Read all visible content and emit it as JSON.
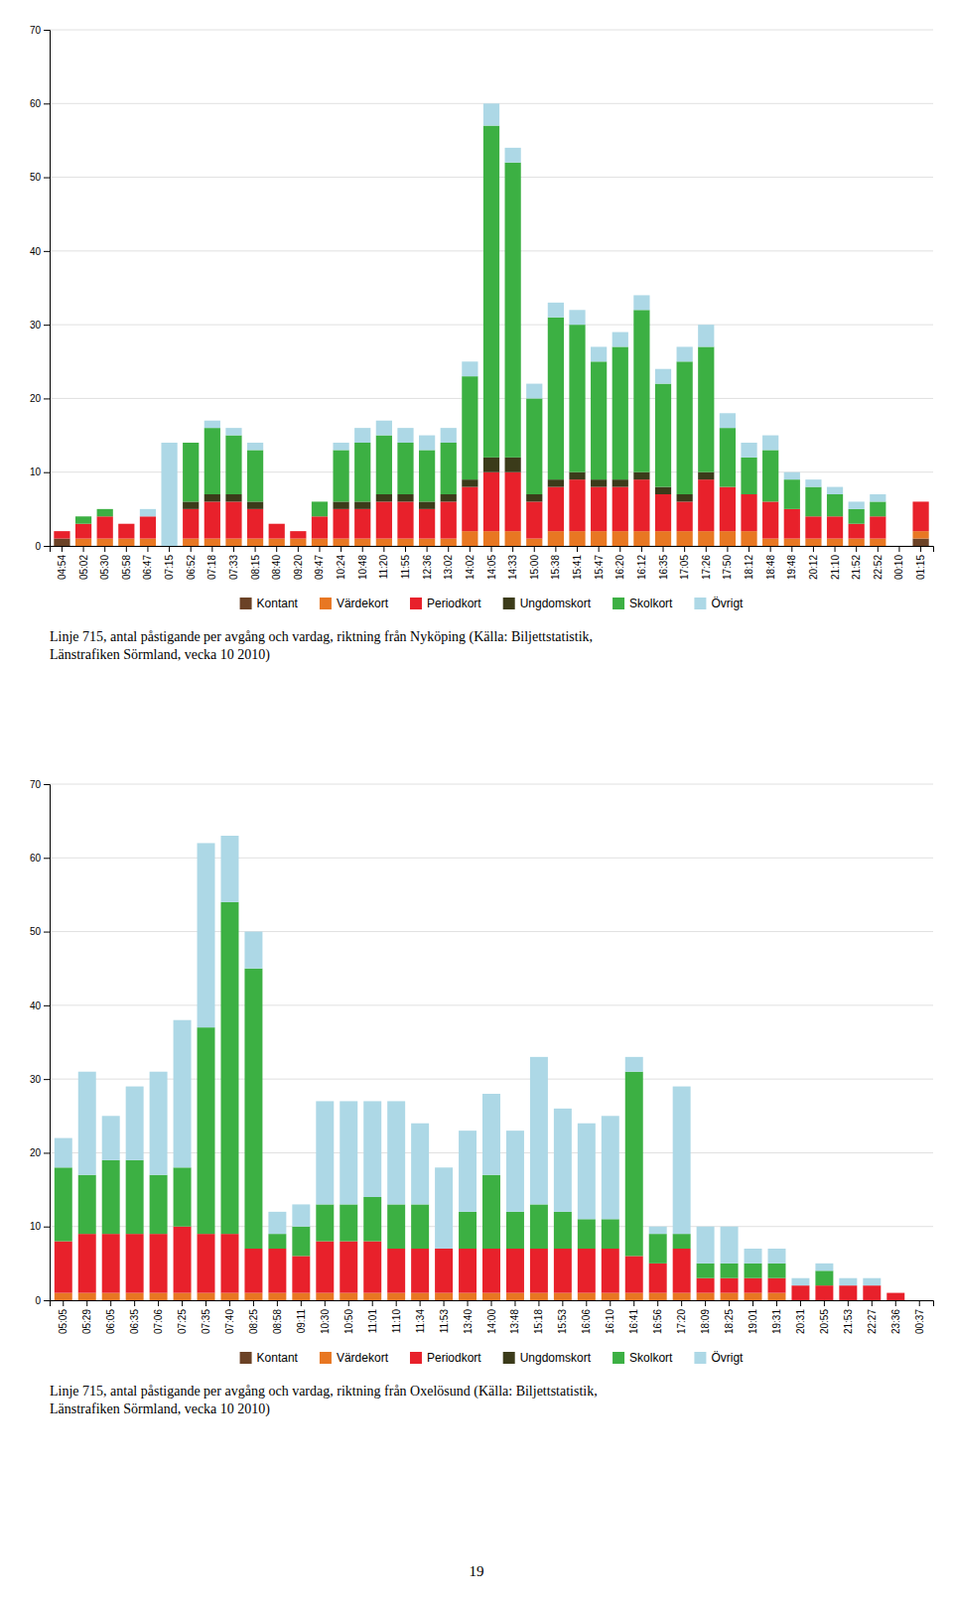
{
  "chart_data": [
    {
      "type": "bar",
      "stacked": true,
      "grid": true,
      "legend": "bottom",
      "title": "Linje 715, antal påstigande per avgång och vardag, riktning från Nyköping (Källa: Biljettstatistik,\nLänstrafiken Sörmland, vecka 10 2010)",
      "categories": [
        "04:54",
        "05:02",
        "05:30",
        "05:58",
        "06:47",
        "07:15",
        "06:52",
        "07:18",
        "07:33",
        "08:15",
        "08:40",
        "09:20",
        "09:47",
        "10:24",
        "10:48",
        "11:20",
        "11:55",
        "12:36",
        "13:02",
        "14:02",
        "14:05",
        "14:33",
        "15:00",
        "15:38",
        "15:41",
        "15:47",
        "16:20",
        "16:12",
        "16:35",
        "17:05",
        "17:26",
        "17:50",
        "18:12",
        "18:48",
        "19:48",
        "20:12",
        "21:10",
        "21:52",
        "22:52",
        "00:10",
        "01:15"
      ],
      "series": [
        {
          "name": "Kontant",
          "color": "#6B4226",
          "values": [
            1,
            0,
            0,
            0,
            0,
            0,
            0,
            0,
            0,
            0,
            0,
            0,
            0,
            0,
            0,
            0,
            0,
            0,
            0,
            0,
            0,
            0,
            0,
            0,
            0,
            0,
            0,
            0,
            0,
            0,
            0,
            0,
            0,
            0,
            0,
            0,
            0,
            0,
            0,
            0,
            1
          ]
        },
        {
          "name": "Värdekort",
          "color": "#E87722",
          "values": [
            0,
            1,
            1,
            1,
            1,
            0,
            1,
            1,
            1,
            1,
            1,
            1,
            1,
            1,
            1,
            1,
            1,
            1,
            1,
            2,
            2,
            2,
            1,
            2,
            2,
            2,
            2,
            2,
            2,
            2,
            2,
            2,
            2,
            1,
            1,
            1,
            1,
            1,
            1,
            0,
            1
          ]
        },
        {
          "name": "Periodkort",
          "color": "#E8212B",
          "values": [
            1,
            2,
            3,
            2,
            3,
            0,
            4,
            5,
            5,
            4,
            2,
            1,
            3,
            4,
            4,
            5,
            5,
            4,
            5,
            6,
            8,
            8,
            5,
            6,
            7,
            6,
            6,
            7,
            5,
            4,
            7,
            6,
            5,
            5,
            4,
            3,
            3,
            2,
            3,
            0,
            4
          ]
        },
        {
          "name": "Ungdomskort",
          "color": "#3B3B1A",
          "values": [
            0,
            0,
            0,
            0,
            0,
            0,
            1,
            1,
            1,
            1,
            0,
            0,
            0,
            1,
            1,
            1,
            1,
            1,
            1,
            1,
            2,
            2,
            1,
            1,
            1,
            1,
            1,
            1,
            1,
            1,
            1,
            0,
            0,
            0,
            0,
            0,
            0,
            0,
            0,
            0,
            0
          ]
        },
        {
          "name": "Skolkort",
          "color": "#3CB043",
          "values": [
            0,
            1,
            1,
            0,
            0,
            0,
            8,
            9,
            8,
            7,
            0,
            0,
            2,
            7,
            8,
            8,
            7,
            7,
            7,
            14,
            45,
            40,
            13,
            22,
            20,
            16,
            18,
            22,
            14,
            18,
            17,
            8,
            5,
            7,
            4,
            4,
            3,
            2,
            2,
            0,
            0
          ]
        },
        {
          "name": "Övrigt",
          "color": "#ADD8E6",
          "values": [
            0,
            0,
            0,
            0,
            1,
            14,
            0,
            1,
            1,
            1,
            0,
            0,
            0,
            1,
            2,
            2,
            2,
            2,
            2,
            2,
            3,
            2,
            2,
            2,
            2,
            2,
            2,
            2,
            2,
            2,
            3,
            2,
            2,
            2,
            1,
            1,
            1,
            1,
            1,
            0,
            0
          ]
        }
      ],
      "ylim": [
        0,
        70
      ],
      "yticks": [
        0,
        10,
        20,
        30,
        40,
        50,
        60,
        70
      ]
    },
    {
      "type": "bar",
      "stacked": true,
      "grid": true,
      "legend": "bottom",
      "title": "Linje 715, antal påstigande per avgång och vardag, riktning från Oxelösund (Källa: Biljettstatistik,\nLänstrafiken Sörmland, vecka 10 2010)",
      "categories": [
        "05:05",
        "05:29",
        "06:05",
        "06:35",
        "07:06",
        "07:25",
        "07:35",
        "07:40",
        "08:25",
        "08:58",
        "09:11",
        "10:30",
        "10:50",
        "11:01",
        "11:10",
        "11:34",
        "11:53",
        "13:40",
        "14:00",
        "13:48",
        "15:18",
        "15:53",
        "16:06",
        "16:10",
        "16:41",
        "16:56",
        "17:20",
        "18:09",
        "18:25",
        "19:01",
        "19:31",
        "20:31",
        "20:55",
        "21:53",
        "22:27",
        "23:36",
        "00:37"
      ],
      "series": [
        {
          "name": "Kontant",
          "color": "#6B4226",
          "values": [
            0,
            0,
            0,
            0,
            0,
            0,
            0,
            0,
            0,
            0,
            0,
            0,
            0,
            0,
            0,
            0,
            0,
            0,
            0,
            0,
            0,
            0,
            0,
            0,
            0,
            0,
            0,
            0,
            0,
            0,
            0,
            0,
            0,
            0,
            0,
            0,
            0
          ]
        },
        {
          "name": "Värdekort",
          "color": "#E87722",
          "values": [
            1,
            1,
            1,
            1,
            1,
            1,
            1,
            1,
            1,
            1,
            1,
            1,
            1,
            1,
            1,
            1,
            1,
            1,
            1,
            1,
            1,
            1,
            1,
            1,
            1,
            1,
            1,
            1,
            1,
            1,
            1,
            0,
            0,
            0,
            0,
            0,
            0
          ]
        },
        {
          "name": "Periodkort",
          "color": "#E8212B",
          "values": [
            7,
            8,
            8,
            8,
            8,
            9,
            8,
            8,
            6,
            6,
            5,
            7,
            7,
            7,
            6,
            6,
            6,
            6,
            6,
            6,
            6,
            6,
            6,
            6,
            5,
            4,
            6,
            2,
            2,
            2,
            2,
            2,
            2,
            2,
            2,
            1,
            0
          ]
        },
        {
          "name": "Ungdomskort",
          "color": "#3B3B1A",
          "values": [
            0,
            0,
            0,
            0,
            0,
            0,
            0,
            0,
            0,
            0,
            0,
            0,
            0,
            0,
            0,
            0,
            0,
            0,
            0,
            0,
            0,
            0,
            0,
            0,
            0,
            0,
            0,
            0,
            0,
            0,
            0,
            0,
            0,
            0,
            0,
            0,
            0
          ]
        },
        {
          "name": "Skolkort",
          "color": "#3CB043",
          "values": [
            10,
            8,
            10,
            10,
            8,
            8,
            28,
            45,
            38,
            2,
            4,
            5,
            5,
            6,
            6,
            6,
            0,
            5,
            10,
            5,
            6,
            5,
            4,
            4,
            25,
            4,
            2,
            2,
            2,
            2,
            2,
            0,
            2,
            0,
            0,
            0,
            0
          ]
        },
        {
          "name": "Övrigt",
          "color": "#ADD8E6",
          "values": [
            4,
            14,
            6,
            10,
            14,
            20,
            25,
            9,
            5,
            3,
            3,
            14,
            14,
            13,
            14,
            11,
            11,
            11,
            11,
            11,
            20,
            14,
            13,
            14,
            2,
            1,
            20,
            5,
            5,
            2,
            2,
            1,
            1,
            1,
            1,
            0,
            0
          ]
        }
      ],
      "ylim": [
        0,
        70
      ],
      "yticks": [
        0,
        10,
        20,
        30,
        40,
        50,
        60,
        70
      ]
    }
  ],
  "page_number": "19"
}
